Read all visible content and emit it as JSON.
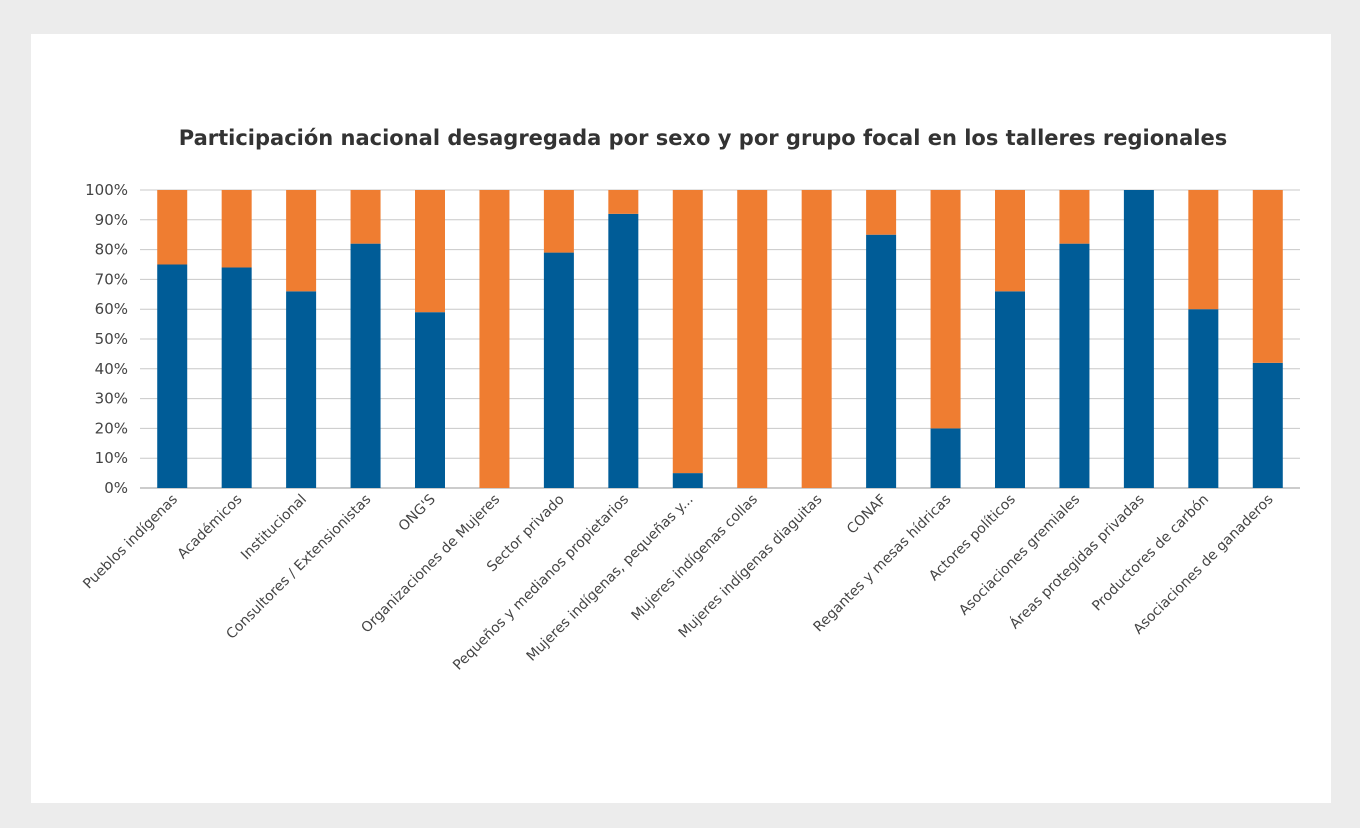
{
  "chart_data": {
    "type": "bar",
    "stacked": true,
    "percent": true,
    "title": "Participación nacional desagregada por sexo y por grupo focal en los talleres regionales",
    "xlabel": "",
    "ylabel": "",
    "ylim": [
      0,
      100
    ],
    "grid": true,
    "legend": "none",
    "y_ticks": [
      "0%",
      "10%",
      "20%",
      "30%",
      "40%",
      "50%",
      "60%",
      "70%",
      "80%",
      "90%",
      "100%"
    ],
    "categories": [
      "Pueblos indígenas",
      "Académicos",
      "Institucional",
      "Consultores / Extensionistas",
      "ONG'S",
      "Organizaciones de Mujeres",
      "Sector privado",
      "Pequeños y medianos propietarios",
      "Mujeres indígenas, pequeñas y...",
      "Mujeres indígenas collas",
      "Mujeres indígenas diaguitas",
      "CONAF",
      "Regantes y mesas hídricas",
      "Actores políticos",
      "Asociaciones gremiales",
      "Áreas protegidas privadas",
      "Productores de carbón",
      "Asociaciones de ganaderos"
    ],
    "series": [
      {
        "color": "#005c97",
        "values": [
          75,
          74,
          66,
          82,
          59,
          0,
          79,
          92,
          5,
          0,
          0,
          85,
          20,
          66,
          82,
          100,
          60,
          42
        ]
      },
      {
        "color": "#ef7d31",
        "values": [
          25,
          26,
          34,
          18,
          41,
          100,
          21,
          8,
          95,
          100,
          100,
          15,
          80,
          34,
          18,
          0,
          40,
          58
        ]
      }
    ]
  }
}
